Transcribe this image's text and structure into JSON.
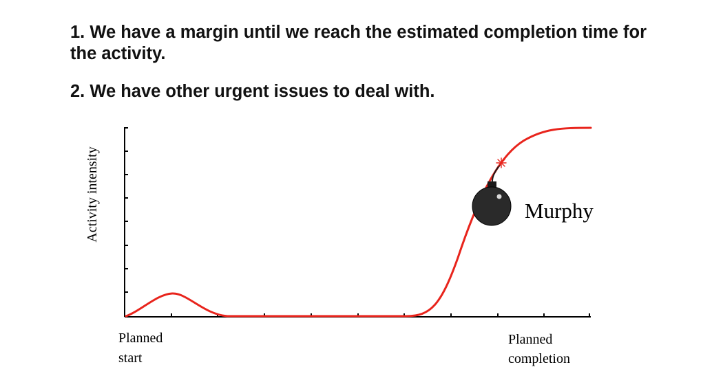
{
  "points": [
    "1. We have a margin until we reach the estimated completion time for the activity.",
    "2. We have other urgent issues to deal with."
  ],
  "diagram": {
    "y_axis_label": "Activity intensity",
    "start_label": [
      "Planned",
      "start"
    ],
    "completion_label": [
      "Planned",
      "completion"
    ],
    "bomb_label": "Murphy",
    "curve_color": "#e8241c",
    "bomb_color": "#2a2a2a",
    "spark_color": "#e8241c",
    "bomb_icon": "bomb-icon"
  }
}
